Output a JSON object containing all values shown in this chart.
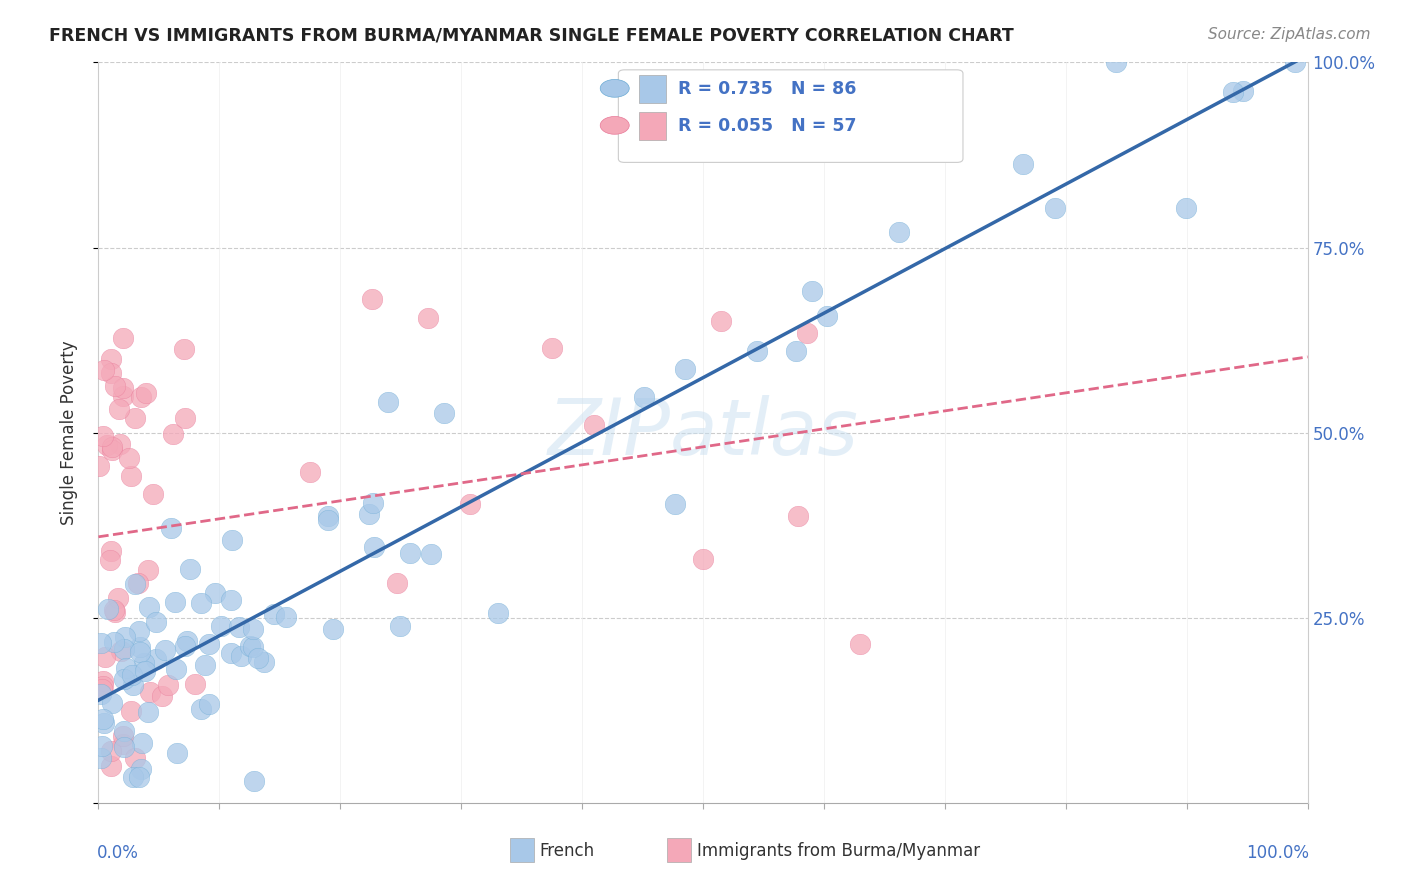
{
  "title": "FRENCH VS IMMIGRANTS FROM BURMA/MYANMAR SINGLE FEMALE POVERTY CORRELATION CHART",
  "source": "Source: ZipAtlas.com",
  "ylabel": "Single Female Poverty",
  "french_R": 0.735,
  "french_N": 86,
  "burma_R": 0.055,
  "burma_N": 57,
  "french_color": "#a8c8e8",
  "french_edge_color": "#6aaad4",
  "french_line_color": "#3468a8",
  "burma_color": "#f4a8b8",
  "burma_edge_color": "#e87898",
  "burma_line_color": "#e06888",
  "watermark": "ZIPatlas",
  "title_color": "#222222",
  "source_color": "#888888",
  "axis_label_color": "#4472c4",
  "ylabel_color": "#333333",
  "ytick_labels_right": [
    "",
    "25.0%",
    "50.0%",
    "75.0%",
    "100.0%"
  ]
}
